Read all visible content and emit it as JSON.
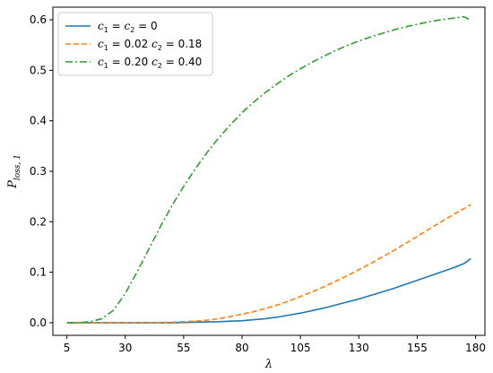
{
  "chart_data": {
    "type": "line",
    "xlabel": "λ",
    "ylabel": {
      "main": "P",
      "sub": "loss, 1"
    },
    "xlim": [
      -1,
      184
    ],
    "ylim": [
      -0.025,
      0.625
    ],
    "xticks": [
      5,
      30,
      55,
      80,
      105,
      130,
      155,
      180
    ],
    "yticks": [
      0.0,
      0.1,
      0.2,
      0.3,
      0.4,
      0.5,
      0.6
    ],
    "legend_position": "top-left",
    "grid": false,
    "x": [
      5,
      10,
      15,
      20,
      25,
      30,
      35,
      40,
      45,
      50,
      55,
      60,
      65,
      70,
      75,
      80,
      85,
      90,
      95,
      100,
      105,
      110,
      115,
      120,
      125,
      130,
      135,
      140,
      145,
      150,
      155,
      160,
      165,
      170,
      175,
      178
    ],
    "series": [
      {
        "legend": {
          "c1": "0",
          "c2": "0",
          "text": "c₁ = c₂ = 0"
        },
        "color": "#1f77b4",
        "dash": "solid",
        "values": [
          0,
          0,
          0,
          0,
          0,
          0,
          0,
          0,
          0,
          0,
          0.0005,
          0.001,
          0.0015,
          0.002,
          0.003,
          0.004,
          0.006,
          0.008,
          0.011,
          0.015,
          0.019,
          0.024,
          0.029,
          0.035,
          0.041,
          0.047,
          0.054,
          0.061,
          0.068,
          0.076,
          0.084,
          0.092,
          0.1,
          0.108,
          0.117,
          0.127
        ]
      },
      {
        "legend": {
          "c1": "0.02",
          "c2": "0.18",
          "text": "c₁ = 0.02 c₂ = 0.18"
        },
        "color": "#ff7f0e",
        "dash": "dashed",
        "values": [
          0,
          0,
          0,
          0,
          0,
          0,
          0,
          0,
          0.0005,
          0.001,
          0.002,
          0.003,
          0.005,
          0.008,
          0.012,
          0.017,
          0.022,
          0.028,
          0.035,
          0.043,
          0.052,
          0.061,
          0.071,
          0.082,
          0.093,
          0.105,
          0.117,
          0.13,
          0.143,
          0.157,
          0.171,
          0.185,
          0.199,
          0.213,
          0.226,
          0.234
        ]
      },
      {
        "legend": {
          "c1": "0.20",
          "c2": "0.40",
          "text": "c₁ = 0.20 c₂ = 0.40"
        },
        "color": "#2ca02c",
        "dash": "dashdot",
        "values": [
          0,
          0,
          0.002,
          0.008,
          0.025,
          0.058,
          0.1,
          0.145,
          0.19,
          0.232,
          0.27,
          0.305,
          0.337,
          0.366,
          0.392,
          0.416,
          0.437,
          0.456,
          0.473,
          0.489,
          0.503,
          0.516,
          0.528,
          0.539,
          0.549,
          0.558,
          0.566,
          0.573,
          0.58,
          0.586,
          0.591,
          0.596,
          0.6,
          0.603,
          0.606,
          0.599
        ]
      }
    ]
  }
}
